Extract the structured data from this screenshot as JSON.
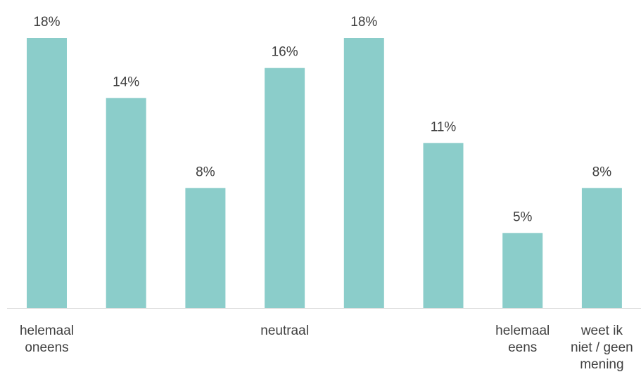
{
  "chart_data": {
    "type": "bar",
    "categories": [
      [
        "helemaal",
        "oneens"
      ],
      [
        ""
      ],
      [
        ""
      ],
      [
        "neutraal"
      ],
      [
        ""
      ],
      [
        ""
      ],
      [
        "helemaal",
        "eens"
      ],
      [
        "weet ik",
        "niet / geen",
        "mening"
      ]
    ],
    "values": [
      18,
      14,
      8,
      16,
      18,
      11,
      5,
      8
    ],
    "value_labels": [
      "18%",
      "14%",
      "8%",
      "16%",
      "18%",
      "11%",
      "5%",
      "8%"
    ],
    "ylim": [
      0,
      18
    ],
    "grid": false,
    "legend": "none",
    "bar_color": "#8BCDCA",
    "axis_color": "#D9D9D9",
    "text_color": "#404040"
  }
}
